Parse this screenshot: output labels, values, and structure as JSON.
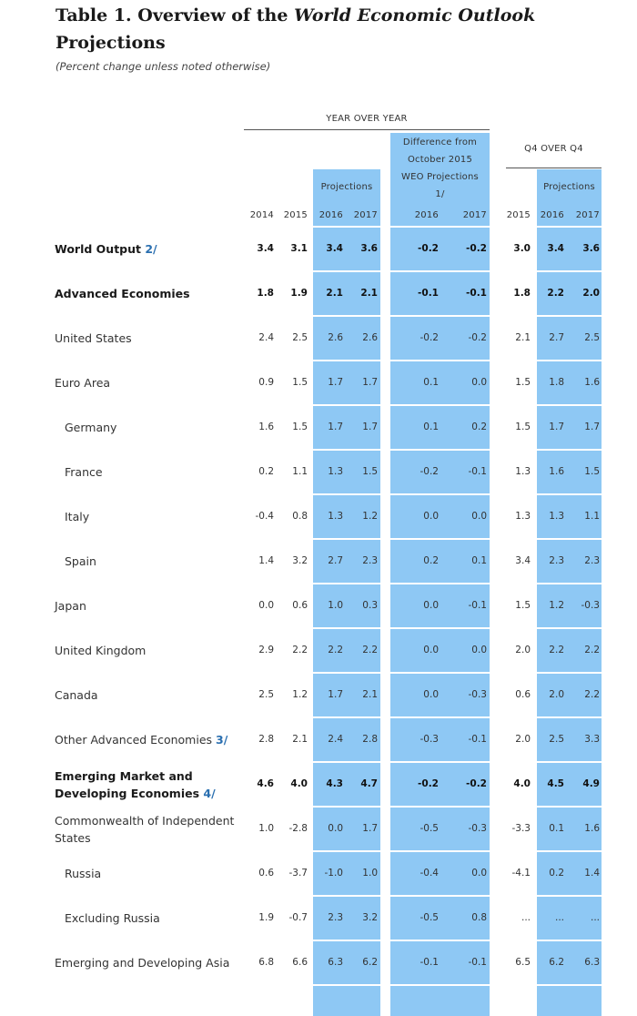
{
  "title": {
    "prefix": "Table 1. Overview of the ",
    "italic": "World Economic Outlook",
    "line2": "Projections"
  },
  "subtitle": "(Percent change unless noted otherwise)",
  "headers": {
    "yoy": "YEAR OVER YEAR",
    "diff_line1": "Difference from",
    "diff_line2": "October 2015",
    "diff_line3": "WEO Projections",
    "diff_line4": "1/",
    "q4": "Q4 OVER Q4",
    "projections_a": "Projections",
    "projections_b": "Projections",
    "years": [
      "2014",
      "2015",
      "2016",
      "2017",
      "2016",
      "2017",
      "2015",
      "2016",
      "2017"
    ]
  },
  "colors": {
    "band": "#8ec8f4",
    "note": "#2a6fb0"
  },
  "rows": [
    {
      "label": "World Output ",
      "note": "2/",
      "bold": true,
      "indent": false,
      "values": [
        "3.4",
        "3.1",
        "3.4",
        "3.6",
        "-0.2",
        "-0.2",
        "3.0",
        "3.4",
        "3.6"
      ]
    },
    {
      "label": "Advanced Economies",
      "note": "",
      "bold": true,
      "indent": false,
      "values": [
        "1.8",
        "1.9",
        "2.1",
        "2.1",
        "-0.1",
        "-0.1",
        "1.8",
        "2.2",
        "2.0"
      ]
    },
    {
      "label": "United States",
      "note": "",
      "bold": false,
      "indent": false,
      "values": [
        "2.4",
        "2.5",
        "2.6",
        "2.6",
        "-0.2",
        "-0.2",
        "2.1",
        "2.7",
        "2.5"
      ]
    },
    {
      "label": "Euro Area",
      "note": "",
      "bold": false,
      "indent": false,
      "values": [
        "0.9",
        "1.5",
        "1.7",
        "1.7",
        "0.1",
        "0.0",
        "1.5",
        "1.8",
        "1.6"
      ]
    },
    {
      "label": "Germany",
      "note": "",
      "bold": false,
      "indent": true,
      "values": [
        "1.6",
        "1.5",
        "1.7",
        "1.7",
        "0.1",
        "0.2",
        "1.5",
        "1.7",
        "1.7"
      ]
    },
    {
      "label": "France",
      "note": "",
      "bold": false,
      "indent": true,
      "values": [
        "0.2",
        "1.1",
        "1.3",
        "1.5",
        "-0.2",
        "-0.1",
        "1.3",
        "1.6",
        "1.5"
      ]
    },
    {
      "label": "Italy",
      "note": "",
      "bold": false,
      "indent": true,
      "values": [
        "-0.4",
        "0.8",
        "1.3",
        "1.2",
        "0.0",
        "0.0",
        "1.3",
        "1.3",
        "1.1"
      ]
    },
    {
      "label": "Spain",
      "note": "",
      "bold": false,
      "indent": true,
      "values": [
        "1.4",
        "3.2",
        "2.7",
        "2.3",
        "0.2",
        "0.1",
        "3.4",
        "2.3",
        "2.3"
      ]
    },
    {
      "label": "Japan",
      "note": "",
      "bold": false,
      "indent": false,
      "values": [
        "0.0",
        "0.6",
        "1.0",
        "0.3",
        "0.0",
        "-0.1",
        "1.5",
        "1.2",
        "-0.3"
      ]
    },
    {
      "label": "United Kingdom",
      "note": "",
      "bold": false,
      "indent": false,
      "values": [
        "2.9",
        "2.2",
        "2.2",
        "2.2",
        "0.0",
        "0.0",
        "2.0",
        "2.2",
        "2.2"
      ]
    },
    {
      "label": "Canada",
      "note": "",
      "bold": false,
      "indent": false,
      "values": [
        "2.5",
        "1.2",
        "1.7",
        "2.1",
        "0.0",
        "-0.3",
        "0.6",
        "2.0",
        "2.2"
      ]
    },
    {
      "label": "Other Advanced Economies ",
      "note": "3/",
      "bold": false,
      "indent": false,
      "values": [
        "2.8",
        "2.1",
        "2.4",
        "2.8",
        "-0.3",
        "-0.1",
        "2.0",
        "2.5",
        "3.3"
      ]
    },
    {
      "label": "Emerging Market and Developing Economies ",
      "note": "4/",
      "bold": true,
      "indent": false,
      "values": [
        "4.6",
        "4.0",
        "4.3",
        "4.7",
        "-0.2",
        "-0.2",
        "4.0",
        "4.5",
        "4.9"
      ]
    },
    {
      "label": "Commonwealth of Independent States",
      "note": "",
      "bold": false,
      "indent": false,
      "values": [
        "1.0",
        "-2.8",
        "0.0",
        "1.7",
        "-0.5",
        "-0.3",
        "-3.3",
        "0.1",
        "1.6"
      ]
    },
    {
      "label": "Russia",
      "note": "",
      "bold": false,
      "indent": true,
      "values": [
        "0.6",
        "-3.7",
        "-1.0",
        "1.0",
        "-0.4",
        "0.0",
        "-4.1",
        "0.2",
        "1.4"
      ]
    },
    {
      "label": "Excluding Russia",
      "note": "",
      "bold": false,
      "indent": true,
      "values": [
        "1.9",
        "-0.7",
        "2.3",
        "3.2",
        "-0.5",
        "0.8",
        "...",
        "...",
        "..."
      ]
    },
    {
      "label": "Emerging and Developing Asia",
      "note": "",
      "bold": false,
      "indent": false,
      "values": [
        "6.8",
        "6.6",
        "6.3",
        "6.2",
        "-0.1",
        "-0.1",
        "6.5",
        "6.2",
        "6.3"
      ]
    }
  ]
}
